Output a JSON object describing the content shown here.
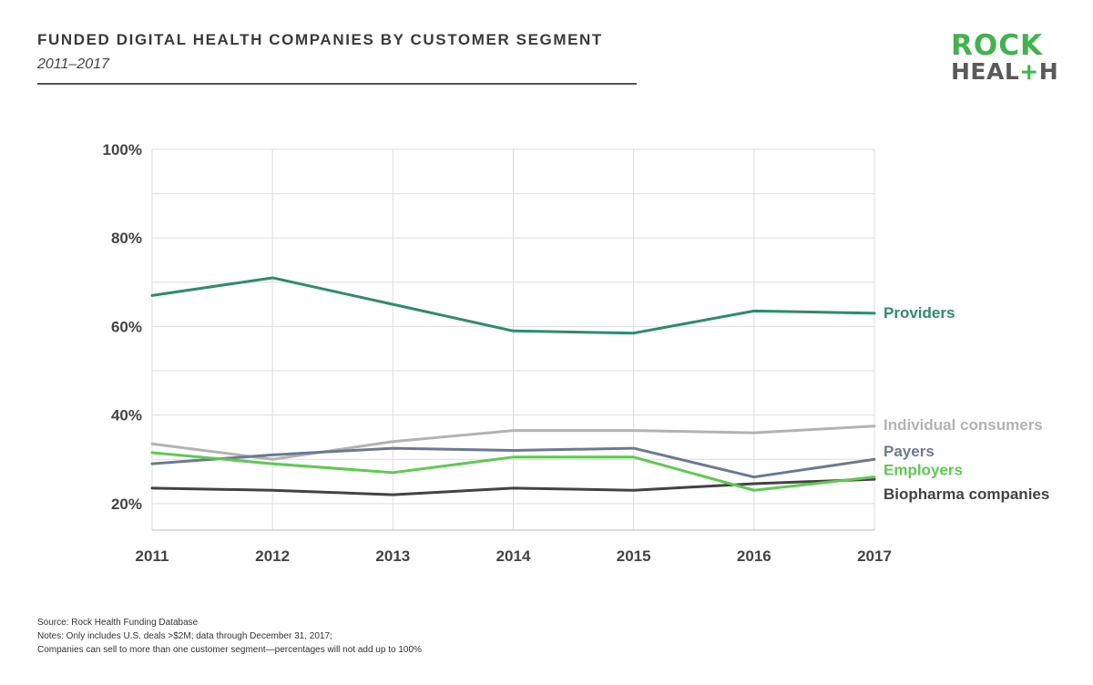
{
  "header": {
    "title": "FUNDED DIGITAL HEALTH COMPANIES BY CUSTOMER SEGMENT",
    "subtitle": "2011–2017"
  },
  "logo": {
    "line1": "ROCK",
    "line2_a": "HEAL",
    "line2_plus": "+",
    "line2_b": "H",
    "brand_green": "#3db54a",
    "brand_gray": "#5a5a5a"
  },
  "chart_data": {
    "type": "line",
    "x": [
      2011,
      2012,
      2013,
      2014,
      2015,
      2016,
      2017
    ],
    "x_tick_labels": [
      "2011",
      "2012",
      "2013",
      "2014",
      "2015",
      "2016",
      "2017"
    ],
    "ylim": [
      14,
      100
    ],
    "y_ticks": [
      20,
      40,
      60,
      80,
      100
    ],
    "y_tick_labels": [
      "20%",
      "40%",
      "60%",
      "80%",
      "100%"
    ],
    "grid": true,
    "legend_placement": "right, labels at line ends",
    "series": [
      {
        "name": "Providers",
        "color": "#2c8c6c",
        "values": [
          67,
          71,
          65,
          59,
          58.5,
          63.5,
          63
        ]
      },
      {
        "name": "Individual consumers",
        "color": "#b3b3b3",
        "values": [
          33.5,
          30,
          34,
          36.5,
          36.5,
          36,
          37.5
        ]
      },
      {
        "name": "Payers",
        "color": "#6b7a94",
        "values": [
          29,
          31,
          32.5,
          32,
          32.5,
          26,
          30
        ]
      },
      {
        "name": "Employers",
        "color": "#5ccb4f",
        "values": [
          31.5,
          29,
          27,
          30.5,
          30.5,
          23,
          26
        ]
      },
      {
        "name": "Biopharma companies",
        "color": "#434343",
        "values": [
          23.5,
          23,
          22,
          23.5,
          23,
          24.5,
          25.5
        ]
      }
    ]
  },
  "footer": {
    "source": "Source: Rock Health Funding Database",
    "notes": "Notes: Only includes U.S. deals >$2M; data through December 31, 2017;",
    "notes2": "Companies can sell to more than one customer segment—percentages will not add up to 100%"
  }
}
